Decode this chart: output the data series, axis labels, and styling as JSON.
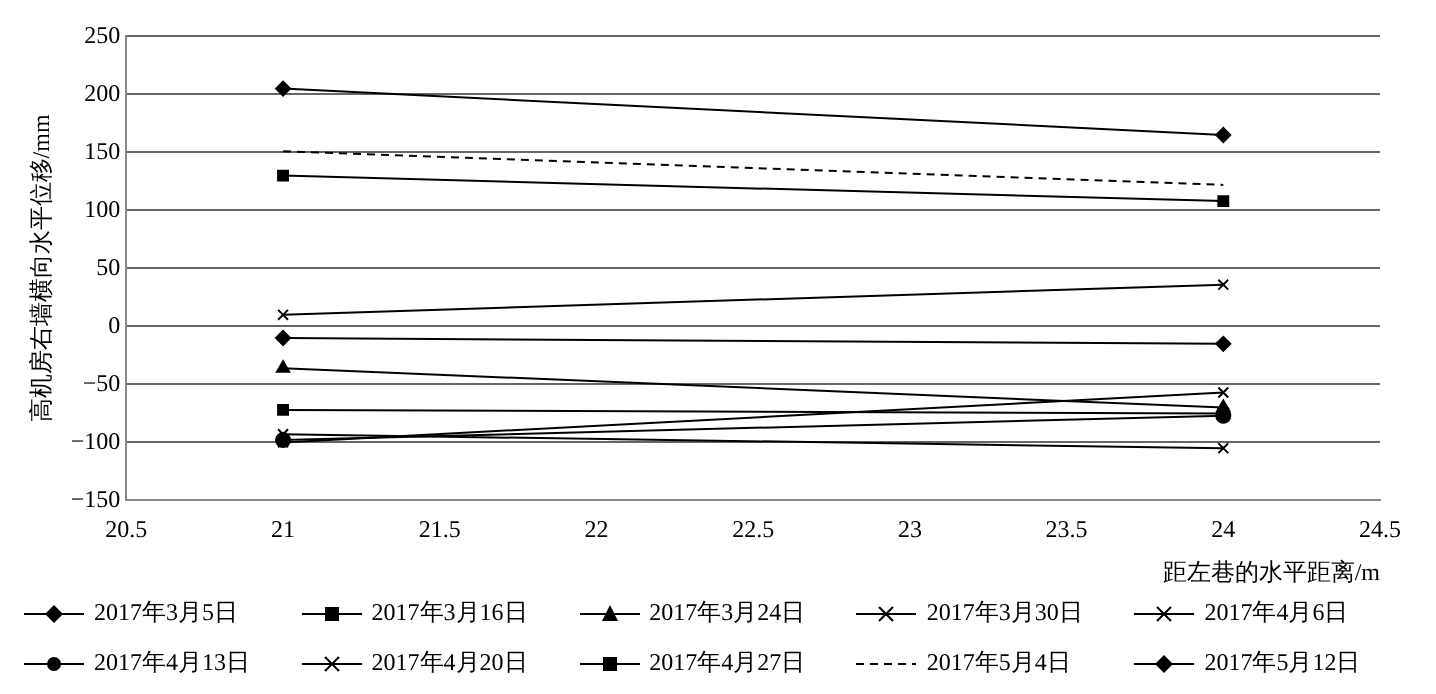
{
  "chart_data": {
    "type": "line",
    "xlabel": "距左巷的水平距离/m",
    "ylabel": "高机房右墙横向水平位移/mm",
    "x": [
      21,
      24
    ],
    "xlim": [
      20.5,
      24.5
    ],
    "xticks": [
      20.5,
      21,
      21.5,
      22,
      22.5,
      23,
      23.5,
      24,
      24.5
    ],
    "ylim": [
      -150,
      250
    ],
    "yticks": [
      -150,
      -100,
      -50,
      0,
      50,
      100,
      150,
      200,
      250
    ],
    "grid": "y",
    "legend": "bottom",
    "series": [
      {
        "name": "2017年3月5日",
        "color": "#000000",
        "marker": "diamond",
        "values": [
          -10,
          -15
        ]
      },
      {
        "name": "2017年3月16日",
        "color": "#000000",
        "marker": "square",
        "values": [
          -72,
          -75
        ]
      },
      {
        "name": "2017年3月24日",
        "color": "#000000",
        "marker": "triangle",
        "values": [
          -36,
          -70
        ]
      },
      {
        "name": "2017年3月30日",
        "color": "#000000",
        "marker": "cross",
        "values": [
          -93,
          -105
        ]
      },
      {
        "name": "2017年4月6日",
        "color": "#000000",
        "marker": "cross",
        "values": [
          10,
          36
        ]
      },
      {
        "name": "2017年4月13日",
        "color": "#000000",
        "marker": "circle",
        "values": [
          -98,
          -77
        ]
      },
      {
        "name": "2017年4月20日",
        "color": "#000000",
        "marker": "cross",
        "values": [
          -100,
          -57
        ]
      },
      {
        "name": "2017年4月27日",
        "color": "#000000",
        "marker": "square",
        "values": [
          130,
          108
        ]
      },
      {
        "name": "2017年5月4日",
        "color": "#000000",
        "marker": "none",
        "line_style": "dashed",
        "values": [
          151,
          122
        ]
      },
      {
        "name": "2017年5月12日",
        "color": "#000000",
        "marker": "diamond",
        "values": [
          205,
          165
        ]
      }
    ]
  }
}
